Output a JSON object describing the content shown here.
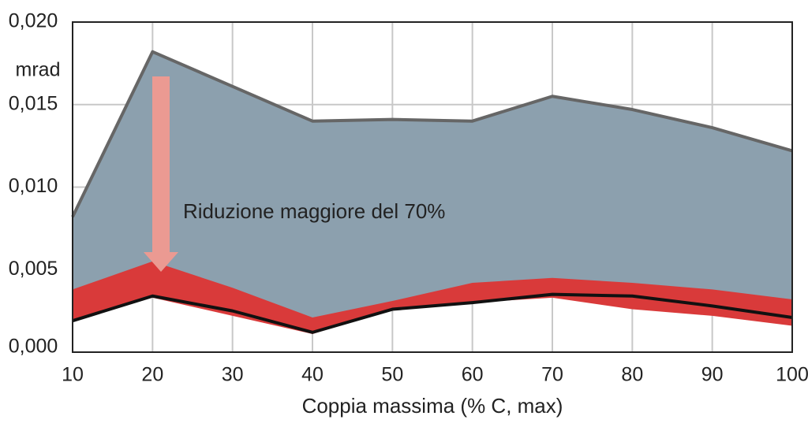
{
  "chart_data": {
    "type": "line",
    "x_label": "Coppia massima (% C, max)",
    "y_unit": "mrad",
    "annotation": "Riduzione maggiore del 70%",
    "x": [
      10,
      20,
      30,
      40,
      50,
      60,
      70,
      80,
      90,
      100
    ],
    "series": [
      {
        "style": "area",
        "color": "#8ca0ae",
        "line_color": "#666666",
        "values": [
          0.0082,
          0.0182,
          0.0161,
          0.014,
          0.0141,
          0.014,
          0.0155,
          0.0147,
          0.0136,
          0.0122
        ]
      },
      {
        "style": "band",
        "color": "#d93a3a",
        "values": [
          0.0038,
          0.0055,
          0.0039,
          0.0021,
          0.0031,
          0.0042,
          0.0045,
          0.0042,
          0.0038,
          0.0032
        ],
        "lower": [
          0.0019,
          0.0033,
          0.0022,
          0.0011,
          0.0026,
          0.003,
          0.0033,
          0.0026,
          0.0022,
          0.0016
        ]
      },
      {
        "style": "line",
        "color": "#111111",
        "values": [
          0.0019,
          0.0034,
          0.0025,
          0.0012,
          0.0026,
          0.003,
          0.0035,
          0.0034,
          0.0028,
          0.0021
        ]
      }
    ],
    "xlim": [
      10,
      100
    ],
    "xticks": [
      10,
      20,
      30,
      40,
      50,
      60,
      70,
      80,
      90,
      100
    ],
    "ylim": [
      0,
      0.02
    ],
    "yticks": [
      {
        "value": 0,
        "label": "0,000"
      },
      {
        "value": 0.005,
        "label": "0,005"
      },
      {
        "value": 0.01,
        "label": "0,010"
      },
      {
        "value": 0.015,
        "label": "0,015"
      },
      {
        "value": 0.02,
        "label": "0,020"
      }
    ],
    "grid": true
  }
}
